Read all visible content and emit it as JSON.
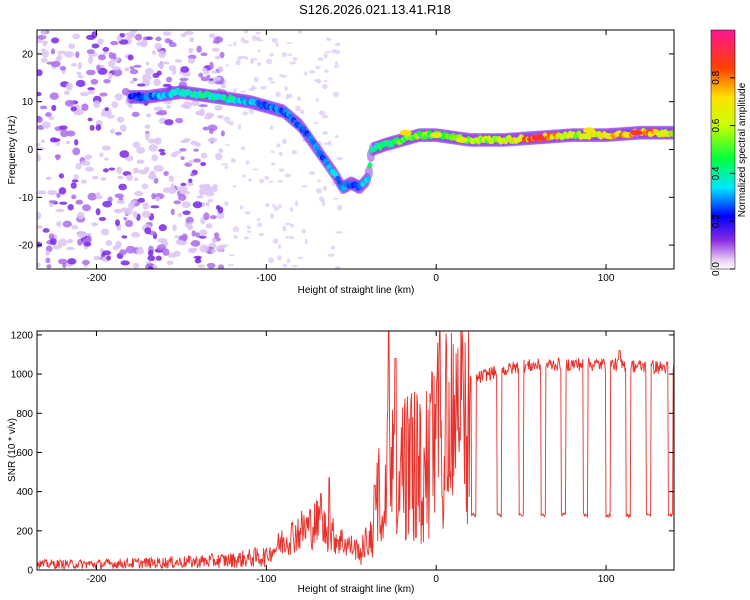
{
  "title": "S126.2026.021.13.41.R18",
  "chart_data": [
    {
      "type": "heatmap",
      "name": "spectrogram",
      "xlabel": "Height of straight line (km)",
      "ylabel": "Frequency (Hz)",
      "xlim": [
        -235,
        140
      ],
      "ylim": [
        -25,
        25
      ],
      "xticks": [
        -200,
        -100,
        0,
        100
      ],
      "yticks": [
        -20,
        -10,
        0,
        10,
        20
      ],
      "grid": false,
      "ridge": {
        "x": [
          -180,
          -170,
          -150,
          -130,
          -110,
          -100,
          -90,
          -80,
          -70,
          -60,
          -55,
          -50,
          -45,
          -40,
          -38,
          -30,
          -20,
          -10,
          0,
          20,
          40,
          60,
          80,
          100,
          120,
          140
        ],
        "y": [
          11,
          11,
          12,
          11,
          10,
          9,
          8,
          5,
          0,
          -5,
          -8,
          -7,
          -8,
          -6,
          0,
          1,
          2,
          3,
          3,
          2,
          2,
          2.5,
          3,
          3,
          3.5,
          3.5
        ],
        "amplitude": [
          0.25,
          0.3,
          0.4,
          0.45,
          0.35,
          0.3,
          0.3,
          0.3,
          0.3,
          0.35,
          0.3,
          0.3,
          0.3,
          0.4,
          0.45,
          0.5,
          0.55,
          0.6,
          0.55,
          0.6,
          0.65,
          0.95,
          0.65,
          0.75,
          0.85,
          0.7
        ]
      },
      "colorbar": {
        "label": "Normalized spectral amplitude",
        "range": [
          0,
          1
        ],
        "ticks": [
          "0.0",
          "0.2",
          "0.4",
          "0.6",
          "0.8"
        ]
      }
    },
    {
      "type": "line",
      "name": "snr",
      "xlabel": "Height of straight line (km)",
      "ylabel": "SNR (10 * v/v)",
      "xlim": [
        -235,
        140
      ],
      "ylim": [
        0,
        1220
      ],
      "xticks": [
        -200,
        -100,
        0,
        100
      ],
      "yticks": [
        0,
        200,
        400,
        600,
        800,
        1000,
        1200
      ],
      "grid": false,
      "color": "#e8302a",
      "series": [
        {
          "name": "SNR",
          "envelope": {
            "x": [
              -235,
              -200,
              -150,
              -120,
              -100,
              -90,
              -80,
              -70,
              -60,
              -50,
              -45,
              -40,
              -35,
              -30,
              -28,
              -25,
              -20,
              -15,
              -10,
              -5,
              0,
              10,
              20,
              30,
              50,
              70,
              90,
              100,
              120,
              140
            ],
            "y": [
              30,
              30,
              40,
              50,
              70,
              150,
              200,
              240,
              170,
              120,
              100,
              160,
              380,
              520,
              620,
              500,
              560,
              650,
              600,
              700,
              780,
              880,
              960,
              1000,
              1040,
              1050,
              1050,
              1050,
              1040,
              1030
            ]
          },
          "dropouts_x": [
            22,
            37,
            50,
            63,
            75,
            88,
            101,
            113,
            125,
            138
          ],
          "dropout_level": 280,
          "spikes": [
            {
              "x": -28,
              "y": 1220
            },
            {
              "x": -24,
              "y": 1080
            },
            {
              "x": -63,
              "y": 470
            },
            {
              "x": -68,
              "y": 390
            },
            {
              "x": 108,
              "y": 1120
            }
          ]
        }
      ]
    }
  ]
}
